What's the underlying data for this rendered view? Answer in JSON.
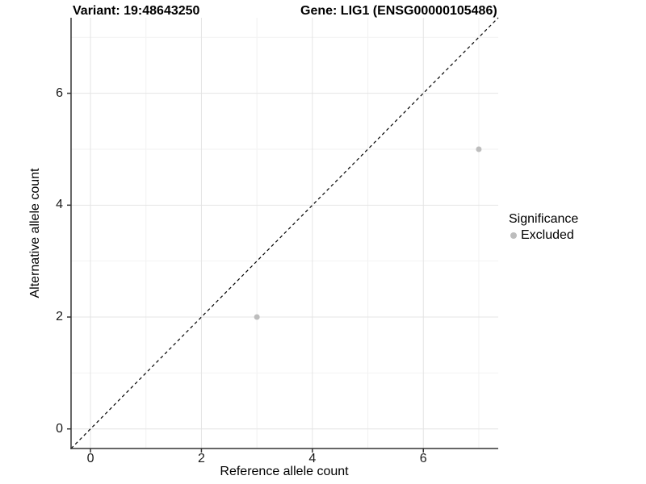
{
  "header": {
    "variant_title": "Variant: 19:48643250",
    "gene_title": "Gene: LIG1 (ENSG00000105486)"
  },
  "chart_data": {
    "type": "scatter",
    "title_left": "Variant: 19:48643250",
    "title_right": "Gene: LIG1 (ENSG00000105486)",
    "xlabel": "Reference allele count",
    "ylabel": "Alternative allele count",
    "xlim": [
      -0.35,
      7.35
    ],
    "ylim": [
      -0.35,
      7.35
    ],
    "x_ticks": [
      0,
      2,
      4,
      6
    ],
    "y_ticks": [
      0,
      2,
      4,
      6
    ],
    "minor_gridlines": [
      1,
      3,
      5,
      7
    ],
    "grid": true,
    "series": [
      {
        "name": "Excluded",
        "color": "#bdbdbd",
        "points": [
          {
            "x": 3,
            "y": 2
          },
          {
            "x": 7,
            "y": 5
          }
        ]
      }
    ],
    "reference_line": {
      "type": "identity",
      "style": "dashed",
      "color": "#000000"
    },
    "legend": {
      "title": "Significance",
      "position": "right",
      "items": [
        {
          "label": "Excluded",
          "color": "#bdbdbd"
        }
      ]
    },
    "colors": {
      "grid_major": "#e4e4e4",
      "grid_minor": "#f2f2f2",
      "axis": "#333333"
    }
  }
}
